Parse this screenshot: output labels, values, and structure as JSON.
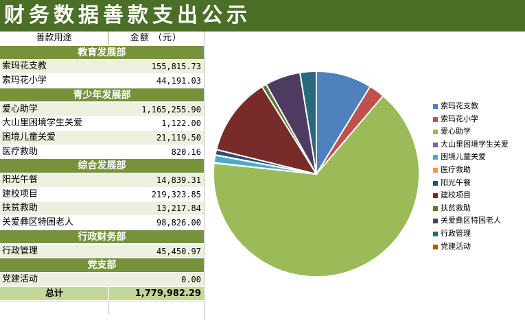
{
  "title": "财务数据善款支出公示",
  "table": {
    "header": {
      "col1": "善款用途",
      "col2": "金额 （元）"
    },
    "sections": [
      {
        "name": "教育发展部",
        "rows": [
          {
            "label": "索玛花支教",
            "value": "155,815.73"
          },
          {
            "label": "索玛花小学",
            "value": "44,191.03"
          }
        ]
      },
      {
        "name": "青少年发展部",
        "rows": [
          {
            "label": "爱心助学",
            "value": "1,165,255.90"
          },
          {
            "label": "大山里困境学生关爱",
            "value": "1,122.00"
          },
          {
            "label": "困境儿童关爱",
            "value": "21,119.50"
          },
          {
            "label": "医疗救助",
            "value": "820.16"
          }
        ]
      },
      {
        "name": "综合发展部",
        "rows": [
          {
            "label": "阳光午餐",
            "value": "14,839.31"
          },
          {
            "label": "建校项目",
            "value": "219,323.85"
          },
          {
            "label": "扶贫救助",
            "value": "13,217.84"
          },
          {
            "label": "关爱彝区特困老人",
            "value": "98,826.00"
          }
        ]
      },
      {
        "name": "行政财务部",
        "rows": [
          {
            "label": "行政管理",
            "value": "45,450.97"
          }
        ]
      },
      {
        "name": "党支部",
        "rows": [
          {
            "label": "党建活动",
            "value": "0.00"
          }
        ]
      }
    ],
    "total": {
      "label": "总计",
      "value": "1,779,982.29"
    }
  },
  "chart_data": {
    "type": "pie",
    "legend_position": "right",
    "categories": [
      "索玛花支教",
      "索玛花小学",
      "爱心助学",
      "大山里困境学生关爱",
      "困境儿童关爱",
      "医疗救助",
      "阳光午餐",
      "建校项目",
      "扶贫救助",
      "关爱彝区特困老人",
      "行政管理",
      "党建活动"
    ],
    "values": [
      155815.73,
      44191.03,
      1165255.9,
      1122.0,
      21119.5,
      820.16,
      14839.31,
      219323.85,
      13217.84,
      98826.0,
      45450.97,
      0.0
    ],
    "colors": [
      "#4f81bd",
      "#c0504d",
      "#9bbb59",
      "#8064a2",
      "#4bacc6",
      "#f79646",
      "#2c4d75",
      "#772c2a",
      "#5f7530",
      "#4d3b62",
      "#276a7c",
      "#b65708"
    ]
  }
}
